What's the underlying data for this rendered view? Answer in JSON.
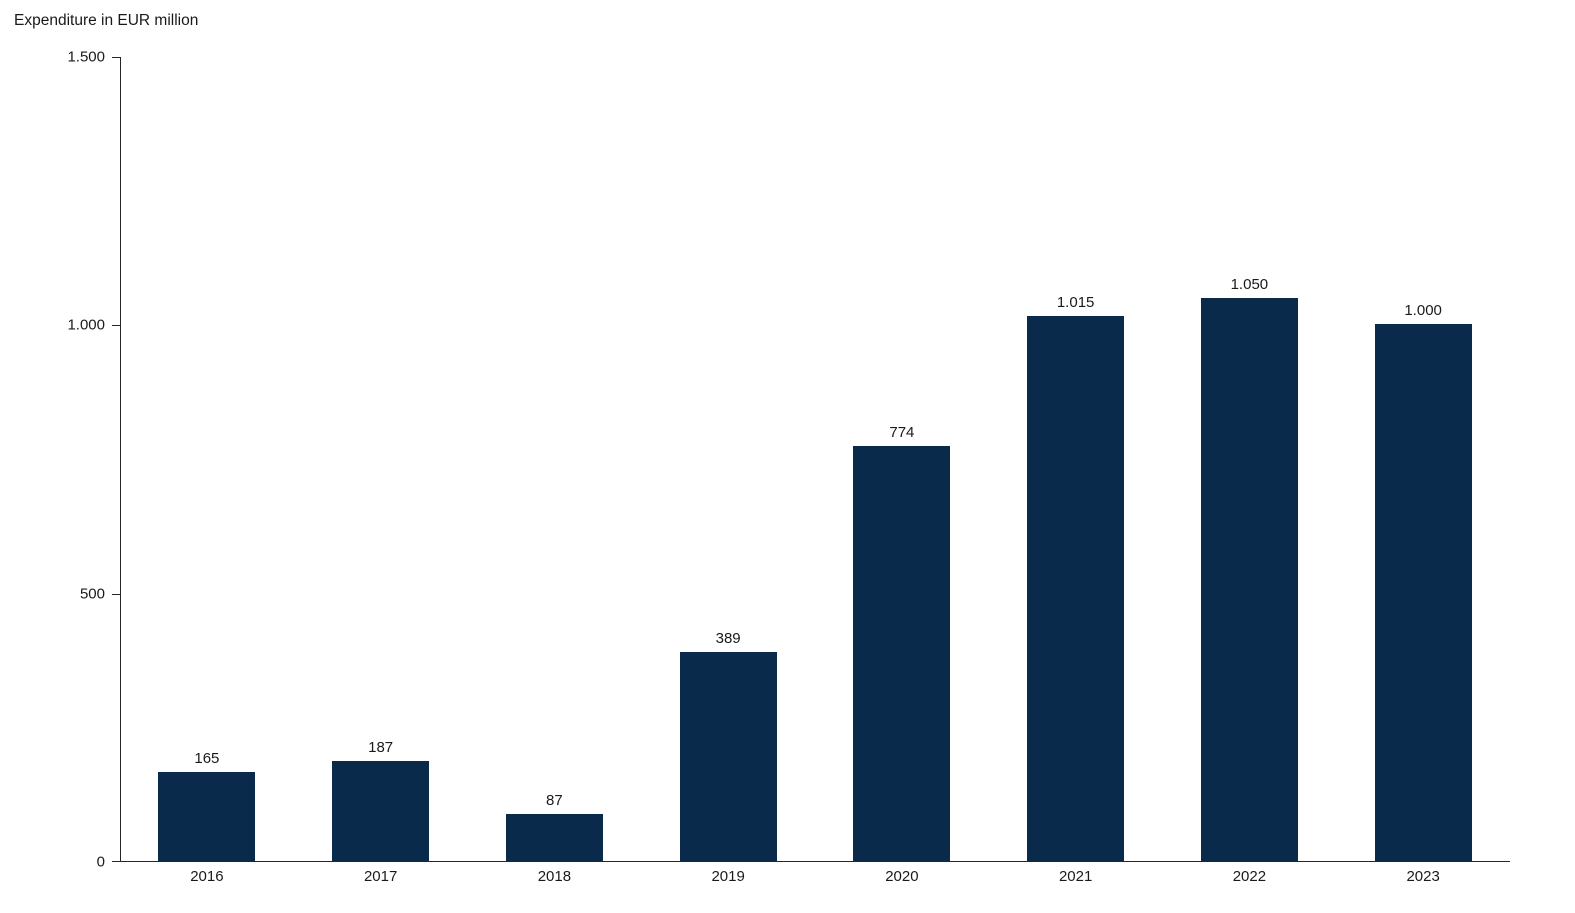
{
  "chart_data": {
    "type": "bar",
    "title": "Expenditure in EUR million",
    "categories": [
      "2016",
      "2017",
      "2018",
      "2019",
      "2020",
      "2021",
      "2022",
      "2023"
    ],
    "values": [
      165,
      187,
      87,
      389,
      774,
      1015,
      1050,
      1000
    ],
    "value_labels": [
      "165",
      "187",
      "87",
      "389",
      "774",
      "1.015",
      "1.050",
      "1.000"
    ],
    "xlabel": "",
    "ylabel": "Expenditure in EUR million",
    "ylim": [
      0,
      1500
    ],
    "yticks": [
      {
        "value": 0,
        "label": "0"
      },
      {
        "value": 500,
        "label": "500"
      },
      {
        "value": 1000,
        "label": "1.000"
      },
      {
        "value": 1500,
        "label": "1.500"
      }
    ],
    "grid": false,
    "legend": null,
    "bar_color": "#0a2a4c",
    "axis_color": "#262626",
    "text_color": "#1a1a1a",
    "background_color": "#ffffff"
  }
}
